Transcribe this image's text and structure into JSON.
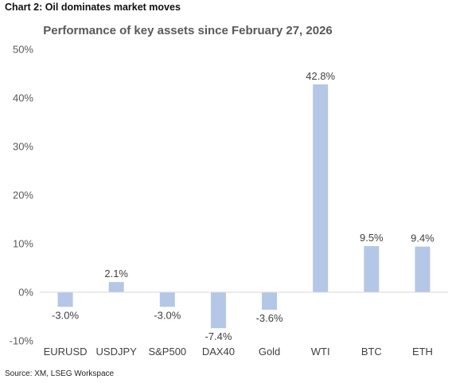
{
  "heading": "Chart 2: Oil dominates market moves",
  "source": "Source: XM, LSEG Workspace",
  "colors": {
    "bar": "#B4C7E7",
    "axis": "#D9D9D9",
    "text": "#595959"
  },
  "chart_data": {
    "type": "bar",
    "title": "Performance of key assets since February 27, 2026",
    "xlabel": "",
    "ylabel": "",
    "categories": [
      "EURUSD",
      "USDJPY",
      "S&P500",
      "DAX40",
      "Gold",
      "WTI",
      "BTC",
      "ETH"
    ],
    "values": [
      -3.0,
      2.1,
      -3.0,
      -7.4,
      -3.6,
      42.8,
      9.5,
      9.4
    ],
    "data_labels": [
      "-3.0%",
      "2.1%",
      "-3.0%",
      "-7.4%",
      "-3.6%",
      "42.8%",
      "9.5%",
      "9.4%"
    ],
    "ylim": [
      -10,
      50
    ],
    "yticks": [
      -10,
      0,
      10,
      20,
      30,
      40,
      50
    ],
    "ytick_labels": [
      "-10%",
      "0%",
      "10%",
      "20%",
      "30%",
      "40%",
      "50%"
    ],
    "grid": false,
    "legend": "none"
  }
}
